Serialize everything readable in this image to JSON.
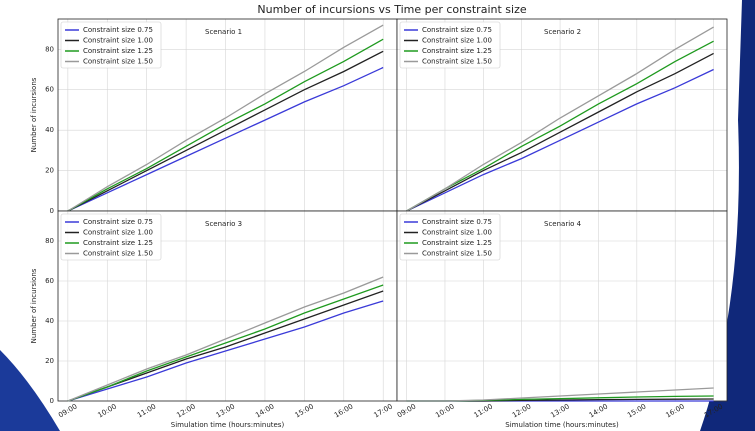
{
  "title": "Number of incursions vs Time per constraint size",
  "chart_data": [
    {
      "type": "line",
      "subtitle": "Scenario 1",
      "ylabel": "Number of incursions",
      "x": [
        9,
        10,
        11,
        12,
        13,
        14,
        15,
        16,
        17
      ],
      "xlim": [
        8.75,
        17.35
      ],
      "ylim": [
        0,
        95
      ],
      "xticks": [
        {
          "value": 9,
          "label": "09:00"
        },
        {
          "value": 10,
          "label": "10:00"
        },
        {
          "value": 11,
          "label": "11:00"
        },
        {
          "value": 12,
          "label": "12:00"
        },
        {
          "value": 13,
          "label": "13:00"
        },
        {
          "value": 14,
          "label": "14:00"
        },
        {
          "value": 15,
          "label": "15:00"
        },
        {
          "value": 16,
          "label": "16:00"
        },
        {
          "value": 17,
          "label": "17:00"
        }
      ],
      "yticks": [
        0,
        20,
        40,
        60,
        80
      ],
      "grid": true,
      "legend": "upper left",
      "series": [
        {
          "name": "Constraint size 0.75",
          "color": "#3a3ad8",
          "values": [
            0,
            9,
            18,
            27,
            36,
            45,
            54,
            62,
            71
          ]
        },
        {
          "name": "Constraint size 1.00",
          "color": "#222222",
          "values": [
            0,
            10,
            20,
            30,
            40,
            50,
            60,
            69,
            79
          ]
        },
        {
          "name": "Constraint size 1.25",
          "color": "#1f9a1f",
          "values": [
            0,
            11,
            21,
            32,
            43,
            53,
            64,
            74,
            85
          ]
        },
        {
          "name": "Constraint size 1.50",
          "color": "#9a9a9a",
          "values": [
            0,
            12,
            23,
            35,
            46,
            58,
            69,
            81,
            92
          ]
        }
      ]
    },
    {
      "type": "line",
      "subtitle": "Scenario 2",
      "x": [
        9,
        10,
        11,
        12,
        13,
        14,
        15,
        16,
        17
      ],
      "xlim": [
        8.75,
        17.35
      ],
      "ylim": [
        0,
        95
      ],
      "xticks": [
        {
          "value": 9,
          "label": "09:00"
        },
        {
          "value": 10,
          "label": "10:00"
        },
        {
          "value": 11,
          "label": "11:00"
        },
        {
          "value": 12,
          "label": "12:00"
        },
        {
          "value": 13,
          "label": "13:00"
        },
        {
          "value": 14,
          "label": "14:00"
        },
        {
          "value": 15,
          "label": "15:00"
        },
        {
          "value": 16,
          "label": "16:00"
        },
        {
          "value": 17,
          "label": "17:00"
        }
      ],
      "yticks": [
        0,
        20,
        40,
        60,
        80
      ],
      "grid": true,
      "legend": "upper left",
      "series": [
        {
          "name": "Constraint size 0.75",
          "color": "#3a3ad8",
          "values": [
            0,
            9,
            18,
            26,
            35,
            44,
            53,
            61,
            70
          ]
        },
        {
          "name": "Constraint size 1.00",
          "color": "#222222",
          "values": [
            0,
            10,
            20,
            29,
            39,
            49,
            59,
            68,
            78
          ]
        },
        {
          "name": "Constraint size 1.25",
          "color": "#1f9a1f",
          "values": [
            0,
            11,
            21,
            32,
            42,
            53,
            63,
            74,
            84
          ]
        },
        {
          "name": "Constraint size 1.50",
          "color": "#9a9a9a",
          "values": [
            0,
            11,
            23,
            34,
            46,
            57,
            68,
            80,
            91
          ]
        }
      ]
    },
    {
      "type": "line",
      "subtitle": "Scenario 3",
      "ylabel": "Number of incursions",
      "xlabel": "Simulation time (hours:minutes)",
      "x": [
        9,
        10,
        11,
        12,
        13,
        14,
        15,
        16,
        17
      ],
      "xlim": [
        8.75,
        17.35
      ],
      "ylim": [
        0,
        95
      ],
      "xticks": [
        {
          "value": 9,
          "label": "09:00"
        },
        {
          "value": 10,
          "label": "10:00"
        },
        {
          "value": 11,
          "label": "11:00"
        },
        {
          "value": 12,
          "label": "12:00"
        },
        {
          "value": 13,
          "label": "13:00"
        },
        {
          "value": 14,
          "label": "14:00"
        },
        {
          "value": 15,
          "label": "15:00"
        },
        {
          "value": 16,
          "label": "16:00"
        },
        {
          "value": 17,
          "label": "17:00"
        }
      ],
      "yticks": [
        0,
        20,
        40,
        60,
        80
      ],
      "grid": true,
      "legend": "upper left",
      "series": [
        {
          "name": "Constraint size 0.75",
          "color": "#3a3ad8",
          "values": [
            0,
            6,
            12,
            19,
            25,
            31,
            37,
            44,
            50
          ]
        },
        {
          "name": "Constraint size 1.00",
          "color": "#222222",
          "values": [
            0,
            7,
            14,
            21,
            27,
            34,
            41,
            48,
            55
          ]
        },
        {
          "name": "Constraint size 1.25",
          "color": "#1f9a1f",
          "values": [
            0,
            7,
            15,
            22,
            29,
            36,
            44,
            51,
            58
          ]
        },
        {
          "name": "Constraint size 1.50",
          "color": "#9a9a9a",
          "values": [
            0,
            8,
            16,
            23,
            31,
            39,
            47,
            54,
            62
          ]
        }
      ]
    },
    {
      "type": "line",
      "subtitle": "Scenario 4",
      "xlabel": "Simulation time (hours:minutes)",
      "x": [
        9,
        10,
        11,
        12,
        13,
        14,
        15,
        16,
        17
      ],
      "xlim": [
        8.75,
        17.35
      ],
      "ylim": [
        0,
        95
      ],
      "xticks": [
        {
          "value": 9,
          "label": "09:00"
        },
        {
          "value": 10,
          "label": "10:00"
        },
        {
          "value": 11,
          "label": "11:00"
        },
        {
          "value": 12,
          "label": "12:00"
        },
        {
          "value": 13,
          "label": "13:00"
        },
        {
          "value": 14,
          "label": "14:00"
        },
        {
          "value": 15,
          "label": "15:00"
        },
        {
          "value": 16,
          "label": "16:00"
        },
        {
          "value": 17,
          "label": "17:00"
        }
      ],
      "yticks": [
        0,
        20,
        40,
        60,
        80
      ],
      "grid": true,
      "legend": "upper left",
      "series": [
        {
          "name": "Constraint size 0.75",
          "color": "#3a3ad8",
          "values": [
            0,
            0,
            0,
            0,
            0,
            0,
            0,
            0,
            0
          ]
        },
        {
          "name": "Constraint size 1.00",
          "color": "#222222",
          "values": [
            0,
            0,
            0,
            0.3,
            0.5,
            0.7,
            0.8,
            0.9,
            1
          ]
        },
        {
          "name": "Constraint size 1.25",
          "color": "#1f9a1f",
          "values": [
            0,
            0,
            0.3,
            0.8,
            1.2,
            1.6,
            2,
            2.3,
            2.5
          ]
        },
        {
          "name": "Constraint size 1.50",
          "color": "#9a9a9a",
          "values": [
            0,
            0,
            0.5,
            1.5,
            2.5,
            3.5,
            4.5,
            5.5,
            6.5
          ]
        }
      ]
    }
  ]
}
